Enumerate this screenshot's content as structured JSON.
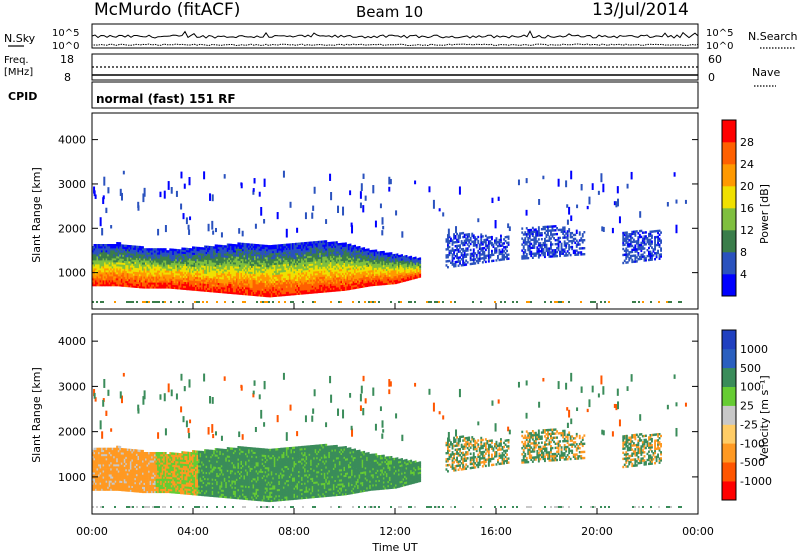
{
  "header": {
    "station": "McMurdo (fitACF)",
    "beam": "Beam 10",
    "date": "13/Jul/2014"
  },
  "summary_panels": {
    "nsky_label": "N.Sky",
    "nsearch_label": "N.Search",
    "noise_ticks_left": [
      "10^5",
      "10^0"
    ],
    "noise_ticks_right": [
      "10^5",
      "10^0"
    ],
    "freq_label_line1": "Freq.",
    "freq_label_line2": "[MHz]",
    "freq_ticks": [
      "18",
      "8"
    ],
    "nave_label": "Nave",
    "nave_ticks": [
      "60",
      "0"
    ],
    "cpid_label": "CPID",
    "cpid_text": "normal (fast) 151 RF"
  },
  "colors": {
    "power_scale": [
      "#0000ff",
      "#2a52be",
      "#3a7d4a",
      "#7fbf3f",
      "#f0e000",
      "#ff9900",
      "#ff6000",
      "#ff0000"
    ],
    "velocity_scale": [
      "#ff0000",
      "#ff5500",
      "#ff9922",
      "#ffcc66",
      "#c8c8c8",
      "#66cc33",
      "#3a8c5a",
      "#2a5fbf",
      "#2040c0"
    ],
    "ground_scatter": "#b0b0b0"
  },
  "chart_data": [
    {
      "type": "heatmap",
      "name": "power",
      "xlabel": "",
      "ylabel": "Slant Range [km]",
      "xlim": [
        0,
        24
      ],
      "ylim": [
        180,
        4600
      ],
      "y_ticks": [
        "1000",
        "2000",
        "3000",
        "4000"
      ],
      "colorbar_label": "Power [dB]",
      "colorbar_ticks": [
        "4",
        "8",
        "12",
        "16",
        "20",
        "24",
        "28"
      ],
      "scatter_regions": [
        {
          "x0": 0.0,
          "x1": 13.0,
          "y_low": [
            700,
            700,
            650,
            650,
            600,
            550,
            500,
            450,
            500,
            550,
            600,
            700,
            750,
            900
          ],
          "y_high": [
            1600,
            1650,
            1550,
            1500,
            1550,
            1600,
            1650,
            1600,
            1650,
            1700,
            1650,
            1500,
            1400,
            1300
          ]
        },
        {
          "x0": 14.0,
          "x1": 16.5,
          "y_low": [
            1100,
            1200,
            1300
          ],
          "y_high": [
            1900,
            1850,
            1800
          ]
        },
        {
          "x0": 17.0,
          "x1": 19.5,
          "y_low": [
            1300,
            1350,
            1400
          ],
          "y_high": [
            2000,
            2050,
            1900
          ]
        },
        {
          "x0": 21.0,
          "x1": 22.5,
          "y_low": [
            1200,
            1300
          ],
          "y_high": [
            1900,
            1950
          ]
        }
      ]
    },
    {
      "type": "heatmap",
      "name": "velocity",
      "xlabel": "Time UT",
      "ylabel": "Slant Range [km]",
      "xlim": [
        0,
        24
      ],
      "ylim": [
        180,
        4600
      ],
      "x_ticks": [
        "00:00",
        "04:00",
        "08:00",
        "12:00",
        "16:00",
        "20:00",
        "00:00"
      ],
      "y_ticks": [
        "1000",
        "2000",
        "3000",
        "4000"
      ],
      "colorbar_label": "Velocity [m s⁻¹]",
      "colorbar_ticks": [
        "1000",
        "500",
        "100",
        "25",
        "-25",
        "-100",
        "-500",
        "-1000"
      ]
    }
  ]
}
